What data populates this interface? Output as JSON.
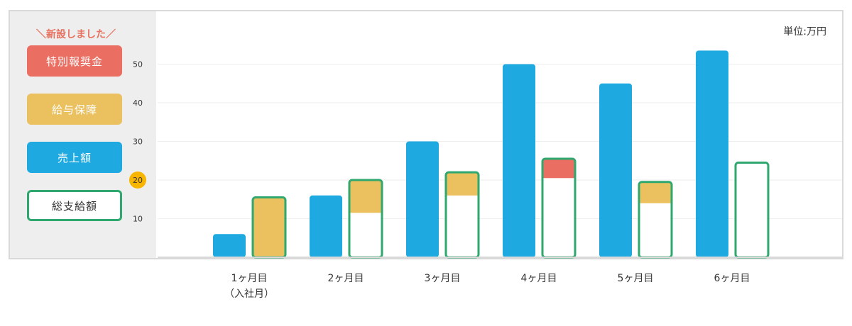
{
  "legend": {
    "note": "＼新設しました／",
    "items": [
      {
        "label": "特別報奨金",
        "color": "#ea6f62"
      },
      {
        "label": "給与保障",
        "color": "#ebc05e"
      },
      {
        "label": "売上額",
        "color": "#1ea9e1"
      },
      {
        "label": "総支給額",
        "color": "#2fa86f"
      }
    ]
  },
  "unit": "単位:万円",
  "highlight_tick": "20",
  "chart_data": {
    "type": "bar",
    "categories": [
      "1ヶ月目",
      "2ヶ月目",
      "3ヶ月目",
      "4ヶ月目",
      "5ヶ月目",
      "6ヶ月目"
    ],
    "category_sublabels": [
      "（入社月）",
      "",
      "",
      "",
      "",
      ""
    ],
    "yticks": [
      "10",
      "20",
      "30",
      "40",
      "50"
    ],
    "ylim": [
      0,
      55
    ],
    "series": [
      {
        "name": "売上額",
        "values": [
          6,
          16,
          30,
          50,
          45,
          53.5
        ]
      },
      {
        "name": "総支給額",
        "values": [
          15.5,
          20,
          22,
          25.5,
          19.5,
          24.5
        ]
      },
      {
        "name": "給与保障",
        "values": [
          15.5,
          8.5,
          6,
          0,
          5.5,
          0
        ]
      },
      {
        "name": "特別報奨金",
        "values": [
          0,
          0,
          0,
          5,
          0,
          0
        ]
      }
    ]
  }
}
